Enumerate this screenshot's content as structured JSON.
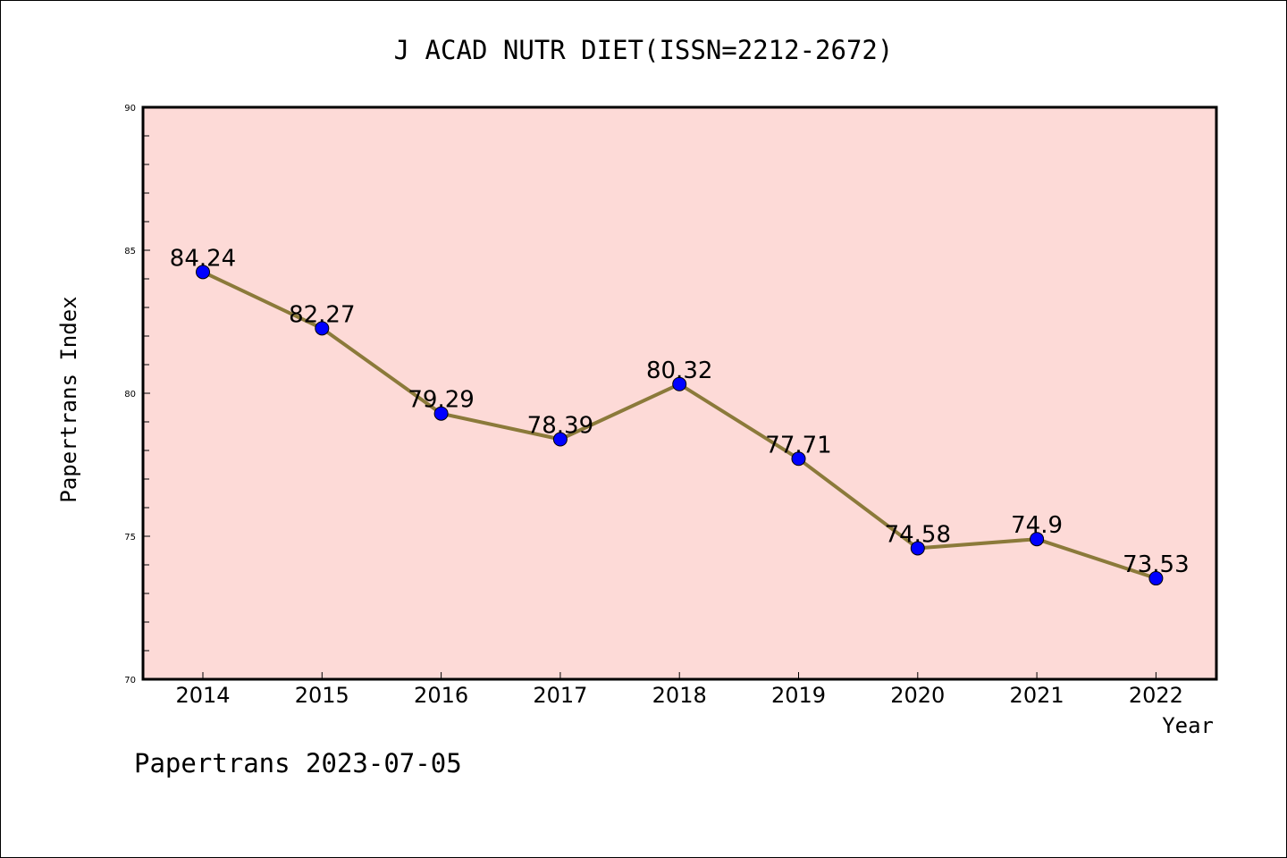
{
  "chart_data": {
    "type": "line",
    "title": "J ACAD NUTR DIET(ISSN=2212-2672)",
    "xlabel": "Year",
    "ylabel": "Papertrans Index",
    "categories": [
      "2014",
      "2015",
      "2016",
      "2017",
      "2018",
      "2019",
      "2020",
      "2021",
      "2022"
    ],
    "series": [
      {
        "values": [
          84.24,
          82.27,
          79.29,
          78.39,
          80.32,
          77.71,
          74.58,
          74.9,
          73.53
        ],
        "labels": [
          "84.24",
          "82.27",
          "79.29",
          "78.39",
          "80.32",
          "77.71",
          "74.58",
          "74.9",
          "73.53"
        ]
      }
    ],
    "ylim": [
      70,
      90
    ],
    "yticks": [
      "70",
      "75",
      "80",
      "85",
      "90"
    ],
    "yminor_step": 1,
    "grid": false,
    "colors": {
      "plot_background": "#fddad7",
      "line": "#8b7a3a",
      "marker": "#0000ff",
      "marker_edge": "#000000"
    }
  },
  "footer": "Papertrans 2023-07-05"
}
